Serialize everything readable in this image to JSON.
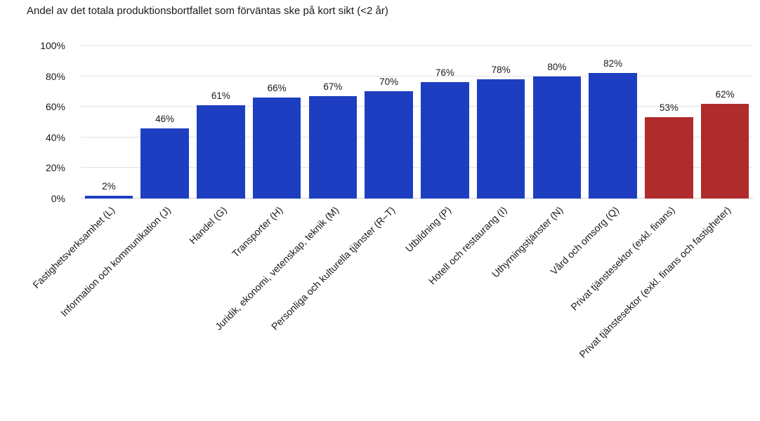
{
  "chart_data": {
    "type": "bar",
    "title": "Andel av det totala produktionsbortfallet som förväntas ske på kort sikt (<2 år)",
    "categories": [
      "Fastighetsverksamhet (L)",
      "Information och kommunikation (J)",
      "Handel (G)",
      "Transporter (H)",
      "Juridik, ekonomi, vetenskap, teknik (M)",
      "Personliga och kulturella tjänster (R–T)",
      "Utbildning (P)",
      "Hotell och restaurang (I)",
      "Uthyrningstjänster (N)",
      "Vård och omsorg (Q)",
      "Privat tjänstesektor (exkl. finans)",
      "Privat tjänstesektor (exkl. finans och fastigheter)"
    ],
    "values": [
      2,
      46,
      61,
      66,
      67,
      70,
      76,
      78,
      80,
      82,
      53,
      62
    ],
    "value_labels": [
      "2%",
      "46%",
      "61%",
      "66%",
      "67%",
      "70%",
      "76%",
      "78%",
      "80%",
      "82%",
      "53%",
      "62%"
    ],
    "groups": [
      "sector",
      "sector",
      "sector",
      "sector",
      "sector",
      "sector",
      "sector",
      "sector",
      "sector",
      "sector",
      "aggregate",
      "aggregate"
    ],
    "colors": {
      "sector": "#1e3ec1",
      "aggregate": "#b02b2b"
    },
    "y_ticks": [
      {
        "value": 0,
        "label": "0%"
      },
      {
        "value": 20,
        "label": "20%"
      },
      {
        "value": 40,
        "label": "40%"
      },
      {
        "value": 60,
        "label": "60%"
      },
      {
        "value": 80,
        "label": "80%"
      },
      {
        "value": 100,
        "label": "100%"
      }
    ],
    "ylim": [
      0,
      100
    ],
    "xlabel": "",
    "ylabel": "",
    "grid": true,
    "legend": "none",
    "x_label_rotation_deg": 45
  }
}
